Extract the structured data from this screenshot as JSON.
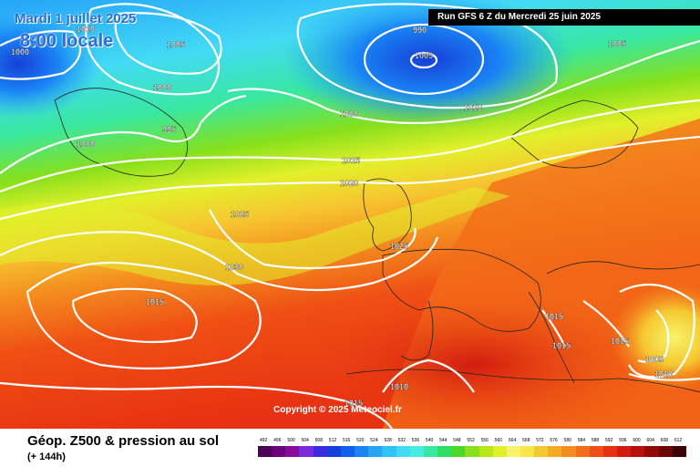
{
  "header": {
    "date": "Mardi 1 juillet 2025",
    "time": "8:00 locale",
    "run": "Run GFS 6 Z du Mercredi 25 juin 2025"
  },
  "footer": {
    "copyright": "Copyright © 2025 Meteociel.fr",
    "title": "Géop. Z500 & pression au sol",
    "lead": "(+ 144h)"
  },
  "legend": {
    "values": [
      "492",
      "496",
      "500",
      "504",
      "508",
      "512",
      "516",
      "520",
      "524",
      "528",
      "532",
      "536",
      "540",
      "544",
      "548",
      "552",
      "556",
      "560",
      "564",
      "568",
      "572",
      "576",
      "580",
      "584",
      "588",
      "592",
      "596",
      "600",
      "604",
      "608",
      "612"
    ],
    "colors": [
      "#4b0055",
      "#6a007a",
      "#8a0a9c",
      "#7a2ad8",
      "#3b2adf",
      "#1640d8",
      "#1060ee",
      "#1a84f5",
      "#25a4f8",
      "#30c2fb",
      "#43daf5",
      "#45eede",
      "#38e8a0",
      "#2fde62",
      "#4cd92a",
      "#86e01b",
      "#b8e81a",
      "#e2f02a",
      "#f7f36a",
      "#f8e54a",
      "#f6c830",
      "#f4aa24",
      "#f48c1e",
      "#f26e18",
      "#ef4f14",
      "#e83112",
      "#d31c10",
      "#b8100c",
      "#920a08",
      "#6a0605",
      "#3a0202"
    ]
  },
  "isobars": [
    "1000",
    "1010",
    "1005",
    "1000",
    "1000",
    "995",
    "990",
    "1005",
    "1005",
    "1000",
    "1010",
    "1015",
    "1020",
    "1025",
    "1025",
    "1030",
    "1015",
    "1015",
    "1015",
    "1015",
    "1010",
    "1005",
    "1010",
    "1015"
  ]
}
